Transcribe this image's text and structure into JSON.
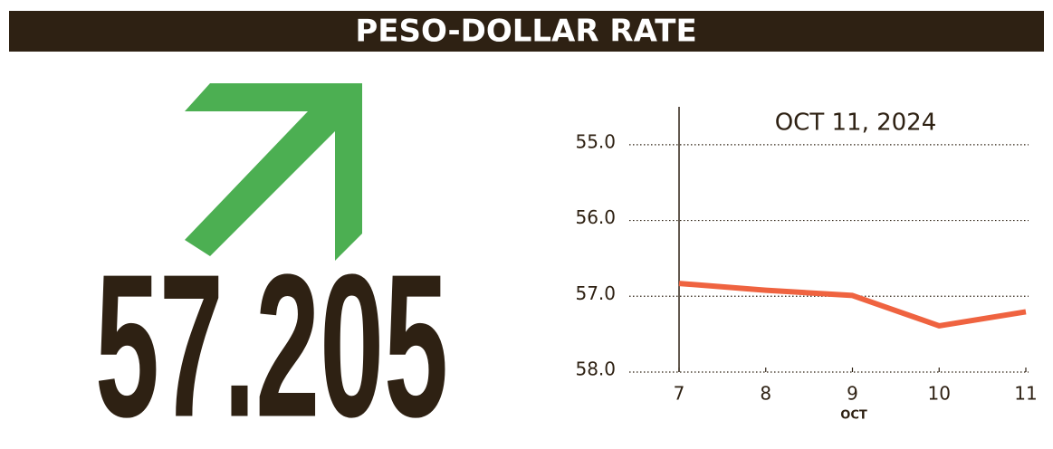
{
  "chart_data": {
    "type": "line",
    "title": "PESO-DOLLAR RATE",
    "headline": "57.205",
    "annotation": "OCT 11, 2024",
    "xlabel": "OCT",
    "x": [
      7,
      8,
      9,
      10,
      11
    ],
    "xlim": [
      7,
      11
    ],
    "xticks": [
      7,
      8,
      9,
      10,
      11
    ],
    "series": [
      {
        "name": "Peso-dollar rate",
        "color": "#ef6340",
        "values": [
          56.83,
          56.92,
          56.99,
          57.39,
          57.205
        ]
      }
    ],
    "ylim": [
      54.5,
      58.0
    ],
    "y_inverted": true,
    "yticks": [
      {
        "value": 55,
        "label": "55.0"
      },
      {
        "value": 56,
        "label": "56.0"
      },
      {
        "value": 57,
        "label": "57.0"
      },
      {
        "value": 58,
        "label": "58.0"
      }
    ],
    "grid": true
  }
}
